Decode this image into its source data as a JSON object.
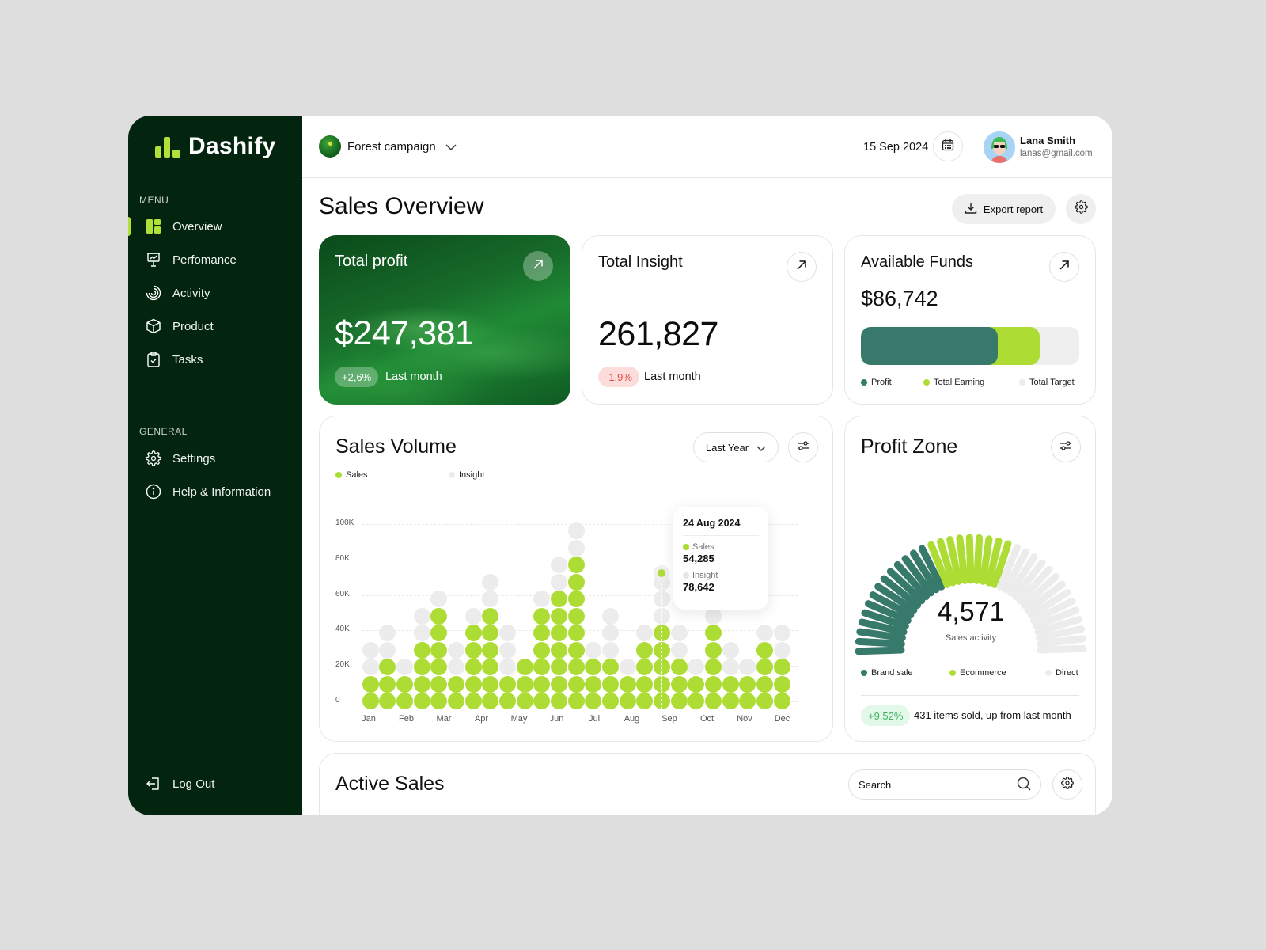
{
  "app": {
    "name": "Dashify"
  },
  "sidebar": {
    "menu_label": "MENU",
    "menu_items": [
      {
        "label": "Overview",
        "icon": "dashboard-icon",
        "active": true
      },
      {
        "label": "Perfomance",
        "icon": "presentation-chart-icon",
        "active": false
      },
      {
        "label": "Activity",
        "icon": "activity-rings-icon",
        "active": false
      },
      {
        "label": "Product",
        "icon": "box-icon",
        "active": false
      },
      {
        "label": "Tasks",
        "icon": "clipboard-check-icon",
        "active": false
      }
    ],
    "general_label": "GENERAL",
    "general_items": [
      {
        "label": "Settings",
        "icon": "gear-icon"
      },
      {
        "label": "Help & Information",
        "icon": "info-icon"
      }
    ],
    "logout_label": "Log Out"
  },
  "topbar": {
    "campaign": "Forest campaign",
    "date": "15 Sep 2024",
    "user": {
      "name": "Lana Smith",
      "email": "lanas@gmail.com"
    }
  },
  "page": {
    "title": "Sales Overview",
    "export_label": "Export report"
  },
  "cards": {
    "total_profit": {
      "title": "Total profit",
      "value": "$247,381",
      "change": "+2,6%",
      "note": "Last month"
    },
    "total_insight": {
      "title": "Total Insight",
      "value": "261,827",
      "change": "-1,9%",
      "note": "Last month"
    },
    "available_funds": {
      "title": "Available Funds",
      "value": "$86,742",
      "legend": [
        "Profit",
        "Total Earning",
        "Total Target"
      ],
      "colors": {
        "profit": "#37796a",
        "earning": "#addd35",
        "target": "#efefef"
      }
    }
  },
  "sales_volume": {
    "title": "Sales Volume",
    "period": "Last Year",
    "legend": [
      "Sales",
      "Insight"
    ],
    "tooltip": {
      "date": "24 Aug 2024",
      "sales_label": "Sales",
      "sales_value": "54,285",
      "insight_label": "Insight",
      "insight_value": "78,642"
    }
  },
  "profit_zone": {
    "title": "Profit Zone",
    "value": "4,571",
    "caption": "Sales activity",
    "legend": [
      "Brand sale",
      "Ecommerce",
      "Direct"
    ],
    "change": "+9,52%",
    "note": "431 items sold, up from last month"
  },
  "active_sales": {
    "title": "Active Sales",
    "search_placeholder": "Search"
  },
  "chart_data": [
    {
      "type": "bar",
      "title": "Sales Volume",
      "subtitle": "Last Year",
      "xlabel": "",
      "ylabel": "",
      "ylim": [
        0,
        100000
      ],
      "yticks": [
        "0",
        "20K",
        "40K",
        "60K",
        "80K",
        "100K"
      ],
      "categories": [
        "Jan",
        "Feb",
        "Mar",
        "Apr",
        "May",
        "Jun",
        "Jul",
        "Aug",
        "Sep",
        "Oct",
        "Nov",
        "Dec"
      ],
      "grid": true,
      "legend_position": "top-left",
      "columns": 25,
      "unit_per_dot": 10000,
      "series": [
        {
          "name": "Sales",
          "color": "#addd35",
          "values": [
            20000,
            30000,
            20000,
            40000,
            60000,
            20000,
            50000,
            60000,
            20000,
            30000,
            60000,
            70000,
            90000,
            30000,
            30000,
            20000,
            40000,
            50000,
            30000,
            20000,
            50000,
            20000,
            20000,
            40000,
            30000
          ]
        },
        {
          "name": "Insight",
          "color": "#ececec",
          "values": [
            40000,
            50000,
            30000,
            60000,
            70000,
            40000,
            60000,
            80000,
            50000,
            30000,
            70000,
            90000,
            110000,
            40000,
            60000,
            30000,
            50000,
            80000,
            50000,
            30000,
            70000,
            40000,
            30000,
            50000,
            50000
          ]
        }
      ],
      "annotation": {
        "date": "24 Aug 2024",
        "Sales": 54285,
        "Insight": 78642
      }
    },
    {
      "type": "pie",
      "title": "Profit Zone",
      "center_value": "4,571",
      "center_label": "Sales activity",
      "legend": [
        "Brand sale",
        "Ecommerce",
        "Direct"
      ],
      "segments": [
        {
          "name": "Brand sale",
          "ticks": 14,
          "color": "#37796a"
        },
        {
          "name": "Ecommerce",
          "ticks": 9,
          "color": "#addd35"
        },
        {
          "name": "Direct",
          "ticks": 14,
          "color": "#ececec"
        }
      ]
    }
  ]
}
